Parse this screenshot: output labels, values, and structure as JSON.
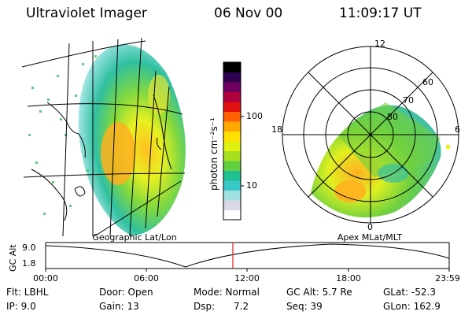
{
  "header": {
    "instrument": "Ultraviolet Imager",
    "date": "06 Nov 00",
    "time": "11:09:17 UT"
  },
  "colorbar": {
    "label": "photon cm⁻²s⁻¹",
    "ticks": [
      "100",
      "10"
    ],
    "scale": "log",
    "colors": [
      "#ffffff",
      "#d8d8e8",
      "#a0e0e0",
      "#38c8c8",
      "#20c090",
      "#60d040",
      "#a8e020",
      "#e0f010",
      "#ffe000",
      "#ffa800",
      "#ff6000",
      "#e01010",
      "#b00040",
      "#700060",
      "#300050",
      "#000000"
    ]
  },
  "geo_panel": {
    "caption": "Geographic Lat/Lon"
  },
  "polar_panel": {
    "caption": "Apex MLat/MLT",
    "lat_labels": [
      "60",
      "70",
      "80"
    ],
    "mlt_labels": [
      "12",
      "18",
      "6",
      "0"
    ]
  },
  "altitude_plot": {
    "axis_label": "GC Alt",
    "y_ticks": [
      "9.0",
      "1.8"
    ],
    "x_ticks": [
      "00:00",
      "06:00",
      "12:00",
      "18:00",
      "23:59"
    ],
    "current_time_color": "#e02020"
  },
  "info": {
    "filter": "Flt: LBHL",
    "ip": "IP: 9.0",
    "door": "Door: Open",
    "gain": "Gain: 13",
    "mode": "Mode: Normal",
    "dsp_label": "Dsp:",
    "dsp_value": "7.2",
    "gc_alt": "GC Alt: 5.7 Re",
    "seq": "Seq: 39",
    "glat": "GLat: -52.3",
    "glon": "GLon: 162.9"
  }
}
